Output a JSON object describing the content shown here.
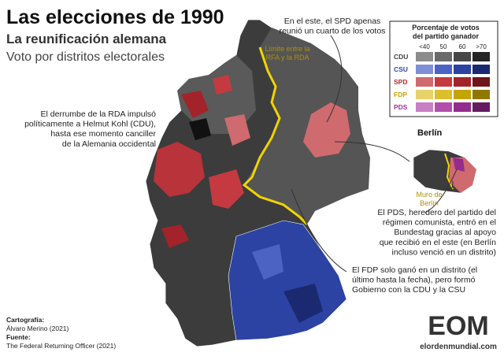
{
  "header": {
    "title": "Las elecciones de 1990",
    "subtitle": "La reunificación alemana",
    "subtitle2": "Voto por distritos electorales"
  },
  "annotations": {
    "spd_east": [
      "En el este, el SPD apenas",
      "reunió un cuarto de los votos"
    ],
    "border": [
      "Límite entre la",
      "RFA y la RDA"
    ],
    "kohl": [
      "El derrumbe de la RDA impulsó",
      "políticamente a Helmut Kohl (CDU),",
      "hasta ese momento canciller",
      "de la Alemania occidental"
    ],
    "berlin": "Berlín",
    "wall": [
      "Muro de",
      "Berlín"
    ],
    "pds": [
      "El PDS, heredero del partido del",
      "régimen comunista, entró en el",
      "Bundestag gracias al apoyo",
      "que recibió en el este (en Berlín",
      "incluso venció en un distrito)"
    ],
    "fdp": [
      "El FDP solo ganó en un distrito (el",
      "último hasta  la fecha), pero formó",
      "Gobierno con la CDU y la CSU"
    ]
  },
  "legend": {
    "title": [
      "Porcentaje de votos",
      "del partido ganador"
    ],
    "bins": [
      "<40",
      "50",
      "60",
      ">70"
    ],
    "parties": [
      {
        "name": "CDU",
        "color": "#444444",
        "swatches": [
          "#8c8c8c",
          "#6a6a6a",
          "#474747",
          "#262626"
        ]
      },
      {
        "name": "CSU",
        "color": "#2f4aa8",
        "swatches": [
          "#7f8fd6",
          "#4d63c4",
          "#2c43a3",
          "#1b2a70"
        ]
      },
      {
        "name": "SPD",
        "color": "#c0282f",
        "swatches": [
          "#cf6a6f",
          "#c43a40",
          "#a3232a",
          "#6e151a"
        ]
      },
      {
        "name": "FDP",
        "color": "#c9a400",
        "swatches": [
          "#e8d36a",
          "#dcbf2c",
          "#c4a400",
          "#8f7800"
        ]
      },
      {
        "name": "PDS",
        "color": "#a0309a",
        "swatches": [
          "#c780c2",
          "#b14fab",
          "#942c8e",
          "#641c60"
        ]
      }
    ]
  },
  "credits": {
    "cartography_label": "Cartografía:",
    "cartography": "Álvaro Merino (2021)",
    "source_label": "Fuente:",
    "source": "The Federal Returning Officer (2021)"
  },
  "logo": {
    "mark": "EOM",
    "site": "elordenmundial.com"
  }
}
